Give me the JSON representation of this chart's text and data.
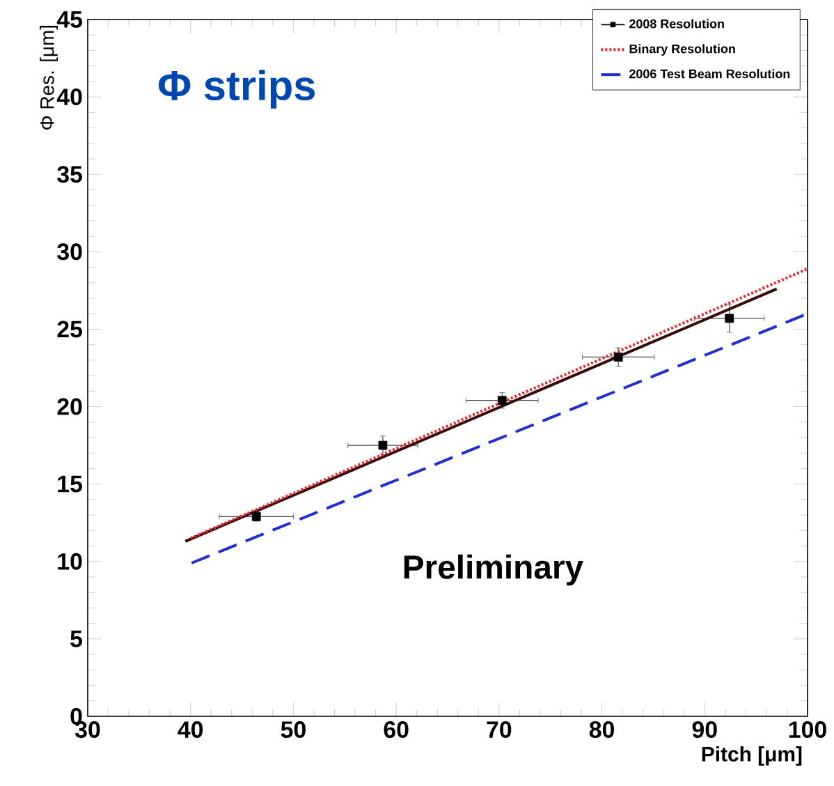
{
  "chart_data": {
    "type": "scatter",
    "xlabel": "Pitch [μm]",
    "ylabel": "Φ Res. [μm]",
    "xlim": [
      30,
      100
    ],
    "xticks": [
      30,
      40,
      50,
      60,
      70,
      80,
      90,
      100
    ],
    "ylim": [
      0,
      45
    ],
    "yticks": [
      0,
      5,
      10,
      15,
      20,
      25,
      30,
      35,
      40,
      45
    ],
    "grid": false,
    "legend": "top right",
    "annotations": [
      "Φ strips",
      "Preliminary"
    ],
    "series": [
      {
        "name": "2008 Resolution",
        "color": "#000000",
        "marker": "square",
        "x": [
          46.4,
          58.7,
          70.3,
          81.6,
          92.4
        ],
        "values": [
          12.9,
          17.5,
          20.4,
          23.2,
          25.7
        ],
        "errors": [
          0.3,
          0.6,
          0.5,
          0.6,
          0.9
        ],
        "xerrors": [
          3.6,
          3.4,
          3.5,
          3.5,
          3.4
        ]
      },
      {
        "type": "line",
        "color": "#3a0a0a",
        "line_style": "solid",
        "x": [
          39.5,
          97
        ],
        "values": [
          11.3,
          27.6
        ]
      },
      {
        "name": "Binary Resolution",
        "type": "line",
        "color": "#e8262b",
        "line_style": "dotted",
        "x": [
          40,
          100
        ],
        "values": [
          11.5,
          28.9
        ]
      },
      {
        "name": "2006 Test Beam Resolution",
        "type": "line",
        "color": "#1f2fd0",
        "line_style": "dashed",
        "x": [
          40.1,
          100
        ],
        "values": [
          9.9,
          26.0
        ]
      }
    ]
  }
}
